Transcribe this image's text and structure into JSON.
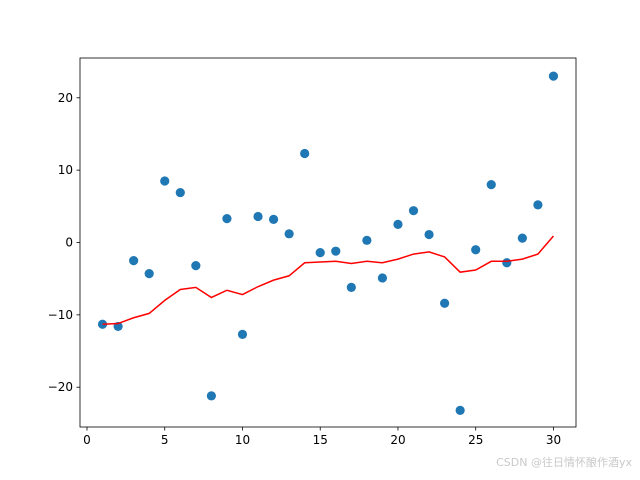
{
  "chart_data": {
    "type": "scatter",
    "xlim": [
      -0.45,
      31.45
    ],
    "ylim": [
      -25.5,
      25.5
    ],
    "xticks": [
      0,
      5,
      10,
      15,
      20,
      25,
      30
    ],
    "yticks": [
      -20,
      -10,
      0,
      10,
      20
    ],
    "grid": false,
    "colors": {
      "points": "#1f77b4",
      "line": "#ff0000"
    },
    "series": [
      {
        "type": "scatter",
        "x": [
          1,
          2,
          3,
          4,
          5,
          6,
          7,
          8,
          9,
          10,
          11,
          12,
          13,
          14,
          15,
          16,
          17,
          18,
          19,
          20,
          21,
          22,
          23,
          24,
          25,
          26,
          27,
          28,
          29,
          30
        ],
        "y": [
          -11.3,
          -11.6,
          -2.5,
          -4.3,
          8.5,
          6.9,
          -3.2,
          -21.2,
          3.3,
          -12.7,
          3.6,
          3.2,
          1.2,
          12.3,
          -1.4,
          -1.2,
          -6.2,
          0.3,
          -4.9,
          2.5,
          4.4,
          1.1,
          -8.4,
          -23.2,
          -1.0,
          8.0,
          -2.8,
          0.6,
          5.2,
          23.0
        ]
      },
      {
        "type": "line",
        "x": [
          1,
          2,
          3,
          4,
          5,
          6,
          7,
          8,
          9,
          10,
          11,
          12,
          13,
          14,
          15,
          16,
          17,
          18,
          19,
          20,
          21,
          22,
          23,
          24,
          25,
          26,
          27,
          28,
          29,
          30
        ],
        "y": [
          -11.3,
          -11.2,
          -10.4,
          -9.8,
          -8.0,
          -6.5,
          -6.2,
          -7.6,
          -6.6,
          -7.2,
          -6.1,
          -5.2,
          -4.6,
          -2.8,
          -2.7,
          -2.6,
          -2.9,
          -2.6,
          -2.8,
          -2.3,
          -1.6,
          -1.3,
          -2.0,
          -4.1,
          -3.8,
          -2.6,
          -2.6,
          -2.3,
          -1.6,
          0.9
        ]
      }
    ]
  },
  "watermark": "CSDN @往日情怀酿作酒yx"
}
